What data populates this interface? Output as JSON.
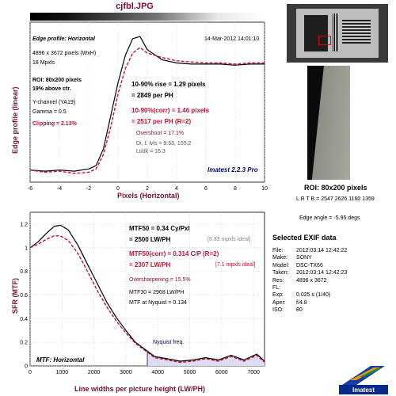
{
  "header": {
    "file_title": "cjfbl.JPG"
  },
  "edge_panel": {
    "title": "Edge profile: Horizontal",
    "timestamp": "14-Mar-2012 14:01:10",
    "info_lines": [
      "4896 x 3672 pixels (WxH)",
      "18 Mpxls"
    ],
    "roi_line": "ROI: 80x200 pixels",
    "roi_pos": "19% above ctr.",
    "channel": "Y-channel  (YA19)",
    "gamma": "Gamma = 0.5",
    "clipping": "Clipping =  2.13%",
    "rise1": "10-90% rise = 1.29 pixels",
    "rise2": "= 2849 per PH",
    "corr1": "10-90%(corr) = 1.46 pixels",
    "corr2": "= 2517 per PH  (R=2)",
    "overshoot": "Overshoot = 17.1%",
    "di_line": "Di, I: lvls = 9.53, 155.2",
    "lt_line": "Lt/dk = 16.3",
    "brand": "Imatest 2.2.3 Pro",
    "ylabel": "Edge profile (linear)",
    "xlabel": "Pixels (Horizontal)",
    "x_ticks": [
      "-6",
      "-4",
      "-2",
      "0",
      "2",
      "4",
      "6",
      "8",
      "10"
    ]
  },
  "mtf_panel": {
    "mtf50": "MTF50 = 0.34 Cy/Pxl",
    "mtf50_lw": "= 2500 LW/PH",
    "ideal1": "[8.33 mpxls ideal]",
    "mtf50corr": "MTF50(corr) = 0.314 C/P  (R=2)",
    "mtf50corr_lw": "= 2307 LW/PH",
    "ideal2": "[7.1 mpxls ideal]",
    "oversharp": "Oversharpening = 15.5%",
    "mtf30": "MTF30 = 2968 LW/PH",
    "nyq_line": "MTF at Nyquist = 0.134",
    "nyquist_label": "Nyquist freq.",
    "title": "MTF: Horizontal",
    "ylabel": "SFR (MTF)",
    "xlabel": "Line widths per picture height (LW/PH)",
    "x_ticks": [
      "0",
      "1000",
      "2000",
      "3000",
      "4000",
      "5000",
      "6000",
      "7000"
    ],
    "y_ticks": [
      "0",
      "0.2",
      "0.4",
      "0.6",
      "0.8",
      "1",
      "1.2"
    ]
  },
  "side": {
    "roi_caption": "ROI: 80x200 pixels",
    "lrtb": "L R T B = 2547 2626  1160 1359",
    "edge_angle": "Edge angle = -5.95 degs",
    "exif_title": "Selected EXIF data",
    "exif": [
      {
        "key": "File:",
        "val": "2012:03:14 12:42:22"
      },
      {
        "key": "Make:",
        "val": "SONY"
      },
      {
        "key": "Model:",
        "val": "DSC-TX66"
      },
      {
        "key": "Taken:",
        "val": "2012:03:14 12:42:23"
      },
      {
        "key": "Res:",
        "val": "4896 x 3672"
      },
      {
        "key": "FL:",
        "val": ""
      },
      {
        "key": "Exp:",
        "val": "0.025 s  (1/40)"
      },
      {
        "key": "Aper:",
        "val": "f/4.8"
      },
      {
        "key": "ISO:",
        "val": "80"
      }
    ],
    "logo_text": "Imatest"
  },
  "colors": {
    "plot_maroon": "#7a1030",
    "corr_red": "#c8102e",
    "nyquist_fill": "#dcdcf4",
    "navy": "#00007a"
  },
  "chart_data": [
    {
      "type": "line",
      "title": "Edge profile: Horizontal",
      "xlabel": "Pixels (Horizontal)",
      "ylabel": "Edge profile (linear)",
      "xlim": [
        -6,
        10
      ],
      "series": [
        {
          "name": "",
          "x": [
            -6,
            -5,
            -4,
            -3,
            -2,
            -1.5,
            -1,
            -0.5,
            0,
            0.5,
            1,
            1.5,
            2,
            3,
            4,
            5,
            6,
            7,
            8,
            9,
            10
          ],
          "y": [
            0.06,
            0.05,
            0.06,
            0.05,
            0.07,
            0.1,
            0.25,
            0.55,
            0.85,
            1.1,
            1.25,
            1.27,
            1.15,
            1.06,
            1.03,
            1.02,
            1.02,
            1.02,
            1.01,
            1.02,
            1.02
          ]
        },
        {
          "name": "",
          "x": [
            -6,
            -5,
            -4,
            -3,
            -2,
            -1.5,
            -1,
            -0.5,
            0,
            0.5,
            1,
            1.5,
            2,
            3,
            4,
            5,
            6,
            7,
            8,
            9,
            10
          ],
          "y": [
            0.06,
            0.04,
            0.05,
            0.03,
            0.04,
            0.07,
            0.2,
            0.45,
            0.75,
            0.98,
            1.12,
            1.17,
            1.12,
            1.08,
            1.05,
            1.04,
            1.03,
            1.03,
            1.02,
            1.03,
            1.03
          ]
        }
      ]
    },
    {
      "type": "line",
      "title": "MTF: Horizontal",
      "xlabel": "Line widths per picture height (LW/PH)",
      "ylabel": "SFR (MTF)",
      "xlim": [
        0,
        7344
      ],
      "ylim": [
        0,
        1.3
      ],
      "nyquist": 3672,
      "series": [
        {
          "name": "",
          "x": [
            0,
            250,
            500,
            750,
            950,
            1200,
            1500,
            1800,
            2100,
            2400,
            2700,
            3000,
            3300,
            3600,
            3900,
            4300,
            4700,
            5100,
            5500,
            5900,
            6300,
            6700,
            7100,
            7344
          ],
          "y": [
            1.0,
            1.05,
            1.12,
            1.18,
            1.19,
            1.15,
            1.02,
            0.86,
            0.7,
            0.54,
            0.41,
            0.3,
            0.2,
            0.14,
            0.08,
            0.06,
            0.04,
            0.05,
            0.07,
            0.05,
            0.09,
            0.05,
            0.1,
            0.04
          ]
        },
        {
          "name": "",
          "x": [
            0,
            250,
            500,
            750,
            950,
            1200,
            1500,
            1800,
            2100,
            2400,
            2700,
            3000,
            3300,
            3600,
            3900,
            4300,
            4700,
            5100,
            5500,
            5900,
            6300,
            6700,
            7100,
            7344
          ],
          "y": [
            1.0,
            1.03,
            1.07,
            1.1,
            1.1,
            1.06,
            0.95,
            0.8,
            0.64,
            0.5,
            0.38,
            0.28,
            0.19,
            0.13,
            0.07,
            0.05,
            0.03,
            0.04,
            0.06,
            0.04,
            0.08,
            0.04,
            0.09,
            0.03
          ]
        }
      ]
    }
  ]
}
